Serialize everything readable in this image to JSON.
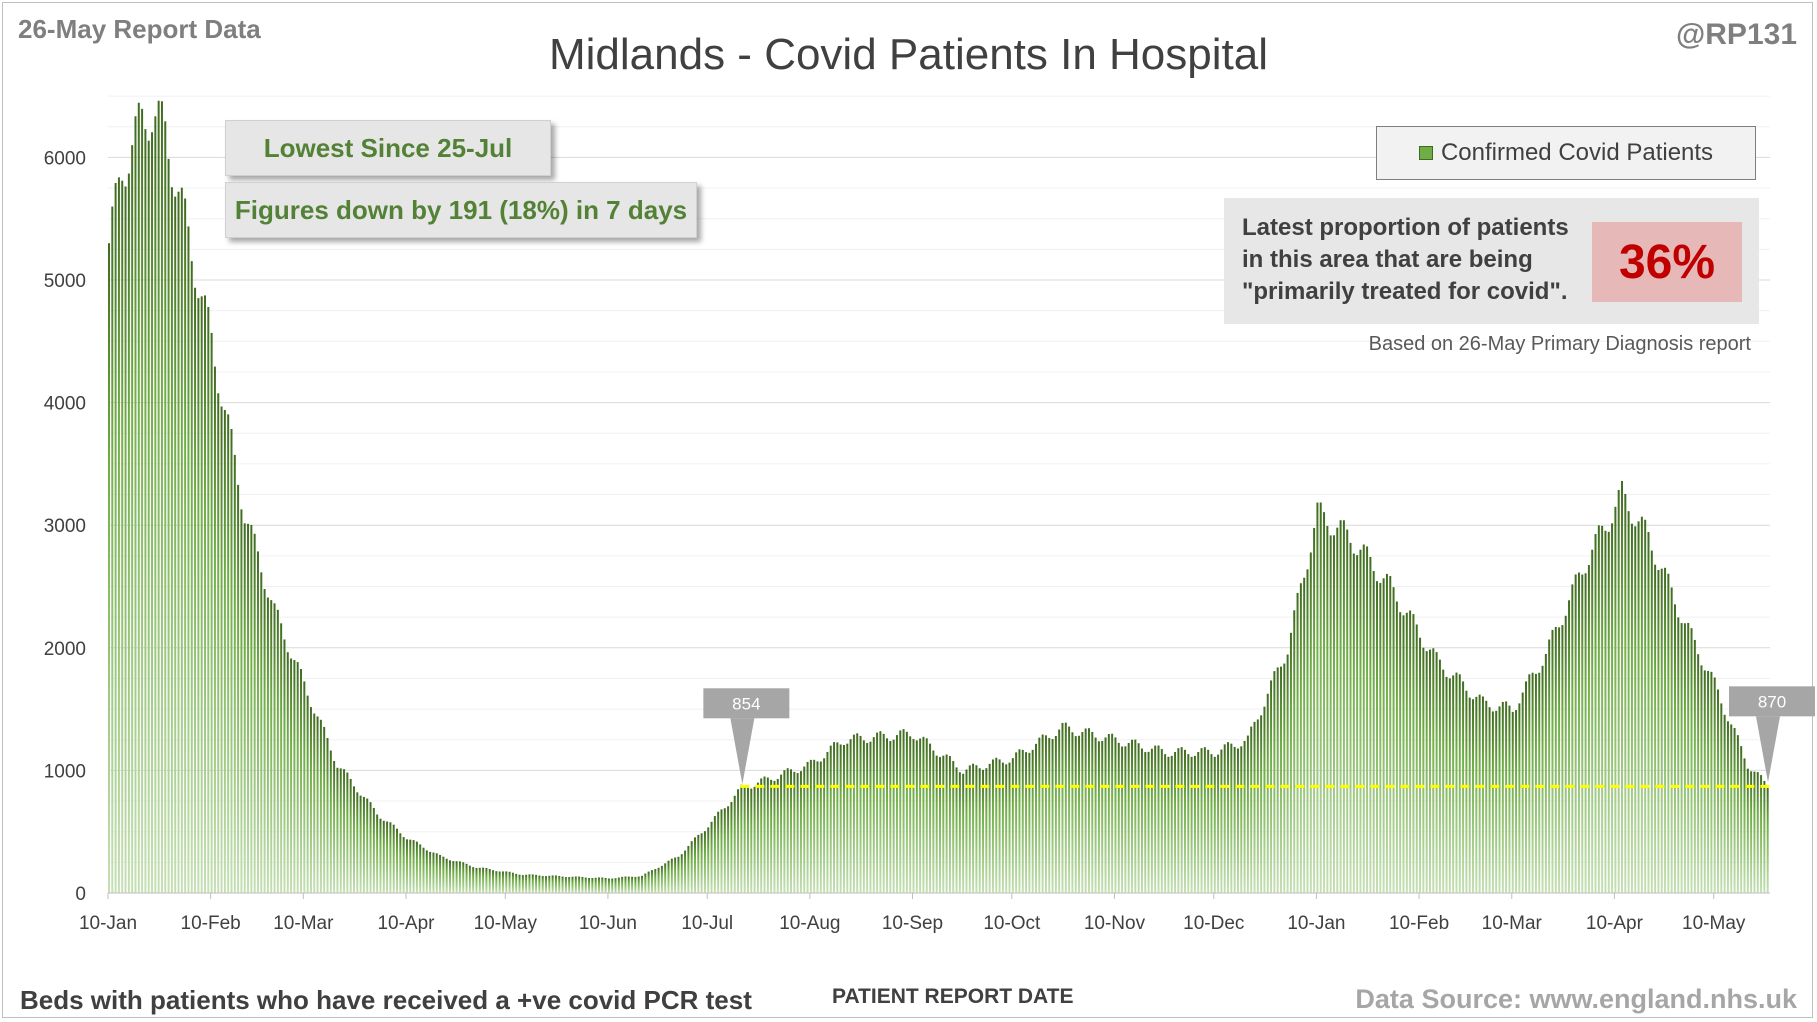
{
  "header": {
    "report_date": "26-May Report Data",
    "handle": "@RP131",
    "title": "Midlands - Covid Patients In Hospital"
  },
  "callouts": {
    "lowest": "Lowest Since 25-Jul",
    "change": "Figures down by 191 (18%) in 7 days"
  },
  "legend": {
    "label": "Confirmed Covid Patients"
  },
  "proportion": {
    "line1": "Latest proportion of patients",
    "line2": "in this area that are being",
    "line3": "\"primarily treated for covid\".",
    "value": "36%",
    "note": "Based on 26-May Primary Diagnosis report"
  },
  "footer": {
    "left": "Beds with patients who have received a +ve covid PCR test",
    "center": "PATIENT REPORT DATE",
    "right": "Data Source: www.england.nhs.uk"
  },
  "colors": {
    "bar_top": "#3f6b1f",
    "bar_bottom": "#c5e0b4",
    "reference_line": "#ffff00",
    "marker": "#a6a6a6"
  },
  "chart_data": {
    "type": "bar",
    "title": "Midlands - Covid Patients In Hospital",
    "xlabel": "PATIENT REPORT DATE",
    "ylabel": "",
    "ylim": [
      0,
      6500
    ],
    "yticks": [
      0,
      1000,
      2000,
      3000,
      4000,
      5000,
      6000
    ],
    "grid": true,
    "legend_position": "top-right",
    "series": [
      {
        "name": "Confirmed Covid Patients"
      }
    ],
    "x_tick_labels": [
      "10-Jan",
      "10-Feb",
      "10-Mar",
      "10-Apr",
      "10-May",
      "10-Jun",
      "10-Jul",
      "10-Aug",
      "10-Sep",
      "10-Oct",
      "10-Nov",
      "10-Dec",
      "10-Jan",
      "10-Feb",
      "10-Mar",
      "10-Apr",
      "10-May"
    ],
    "daily_values_anchors": [
      [
        "10-Jan",
        5300
      ],
      [
        "14-Jan",
        5900
      ],
      [
        "20-Jan",
        6300
      ],
      [
        "23-Jan",
        6380
      ],
      [
        "27-Jan",
        6200
      ],
      [
        "01-Feb",
        5600
      ],
      [
        "10-Feb",
        4500
      ],
      [
        "20-Feb",
        3100
      ],
      [
        "01-Mar",
        2300
      ],
      [
        "10-Mar",
        1700
      ],
      [
        "20-Mar",
        1050
      ],
      [
        "01-Apr",
        650
      ],
      [
        "10-Apr",
        450
      ],
      [
        "20-Apr",
        300
      ],
      [
        "01-May",
        210
      ],
      [
        "15-May",
        150
      ],
      [
        "01-Jun",
        130
      ],
      [
        "10-Jun",
        120
      ],
      [
        "20-Jun",
        140
      ],
      [
        "01-Jul",
        300
      ],
      [
        "10-Jul",
        550
      ],
      [
        "20-Jul",
        854
      ],
      [
        "25-Jul",
        900
      ],
      [
        "10-Aug",
        1050
      ],
      [
        "20-Aug",
        1250
      ],
      [
        "10-Sep",
        1300
      ],
      [
        "25-Sep",
        1000
      ],
      [
        "10-Oct",
        1100
      ],
      [
        "25-Oct",
        1350
      ],
      [
        "10-Nov",
        1250
      ],
      [
        "25-Nov",
        1150
      ],
      [
        "10-Dec",
        1150
      ],
      [
        "20-Dec",
        1250
      ],
      [
        "01-Jan",
        2000
      ],
      [
        "10-Jan",
        3100
      ],
      [
        "20-Jan",
        2900
      ],
      [
        "01-Feb",
        2500
      ],
      [
        "15-Feb",
        1900
      ],
      [
        "01-Mar",
        1550
      ],
      [
        "10-Mar",
        1500
      ],
      [
        "20-Mar",
        1950
      ],
      [
        "01-Apr",
        2700
      ],
      [
        "12-Apr",
        3250
      ],
      [
        "20-Apr",
        2900
      ],
      [
        "01-May",
        2200
      ],
      [
        "10-May",
        1700
      ],
      [
        "20-May",
        1050
      ],
      [
        "26-May",
        870
      ]
    ],
    "annotations": [
      {
        "label": "854",
        "date": "20-Jul",
        "value": 854
      },
      {
        "label": "870",
        "date": "26-May",
        "value": 870
      }
    ],
    "reference_line_value": 870
  }
}
